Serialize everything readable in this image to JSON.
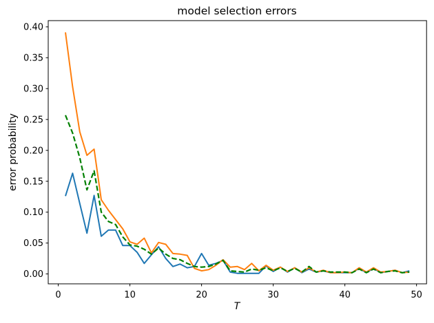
{
  "figure": {
    "background": "#ffffff",
    "spine_color": "#000000"
  },
  "chart_data": {
    "type": "line",
    "title": "model selection errors",
    "xlabel": "T",
    "ylabel": "error probability",
    "xlim": [
      -1.4,
      51.4
    ],
    "ylim": [
      -0.016,
      0.41
    ],
    "x_ticks": [
      0,
      10,
      20,
      30,
      40,
      50
    ],
    "y_ticks": [
      0.0,
      0.05,
      0.1,
      0.15,
      0.2,
      0.25,
      0.3,
      0.35,
      0.4
    ],
    "grid": false,
    "legend_position": "none",
    "x": [
      1,
      2,
      3,
      4,
      5,
      6,
      7,
      8,
      9,
      10,
      11,
      12,
      13,
      14,
      15,
      16,
      17,
      18,
      19,
      20,
      21,
      22,
      23,
      24,
      25,
      26,
      27,
      28,
      29,
      30,
      31,
      32,
      33,
      34,
      35,
      36,
      37,
      38,
      39,
      40,
      41,
      42,
      43,
      44,
      45,
      46,
      47,
      48,
      49
    ],
    "series": [
      {
        "name": "series-1-blue",
        "color": "#1f77b4",
        "style": "solid",
        "line_width": 2,
        "values": [
          0.126,
          0.163,
          0.114,
          0.066,
          0.127,
          0.061,
          0.071,
          0.071,
          0.046,
          0.046,
          0.035,
          0.017,
          0.031,
          0.044,
          0.025,
          0.012,
          0.016,
          0.01,
          0.012,
          0.033,
          0.014,
          0.017,
          0.022,
          0.003,
          0.001,
          0.001,
          0.001,
          0.001,
          0.013,
          0.004,
          0.011,
          0.003,
          0.01,
          0.002,
          0.008,
          0.003,
          0.005,
          0.002,
          0.002,
          0.002,
          0.002,
          0.009,
          0.002,
          0.009,
          0.002,
          0.004,
          0.006,
          0.002,
          0.005
        ]
      },
      {
        "name": "series-2-orange",
        "color": "#ff7f0e",
        "style": "solid",
        "line_width": 2,
        "values": [
          0.391,
          0.303,
          0.23,
          0.192,
          0.202,
          0.12,
          0.103,
          0.088,
          0.073,
          0.052,
          0.048,
          0.058,
          0.034,
          0.051,
          0.048,
          0.033,
          0.032,
          0.03,
          0.009,
          0.005,
          0.007,
          0.014,
          0.023,
          0.011,
          0.012,
          0.007,
          0.017,
          0.005,
          0.014,
          0.006,
          0.011,
          0.004,
          0.01,
          0.003,
          0.01,
          0.003,
          0.006,
          0.002,
          0.002,
          0.003,
          0.002,
          0.01,
          0.003,
          0.01,
          0.003,
          0.004,
          0.006,
          0.002,
          0.003
        ]
      },
      {
        "name": "series-3-green-dashed",
        "color": "#008000",
        "style": "dashed",
        "line_width": 2.2,
        "values": [
          0.257,
          0.228,
          0.188,
          0.136,
          0.167,
          0.1,
          0.085,
          0.08,
          0.06,
          0.047,
          0.045,
          0.04,
          0.032,
          0.042,
          0.032,
          0.025,
          0.023,
          0.017,
          0.012,
          0.011,
          0.012,
          0.016,
          0.022,
          0.005,
          0.004,
          0.003,
          0.008,
          0.006,
          0.01,
          0.005,
          0.01,
          0.004,
          0.009,
          0.003,
          0.012,
          0.003,
          0.005,
          0.003,
          0.003,
          0.003,
          0.002,
          0.008,
          0.002,
          0.008,
          0.002,
          0.004,
          0.005,
          0.002,
          0.003
        ]
      }
    ]
  }
}
